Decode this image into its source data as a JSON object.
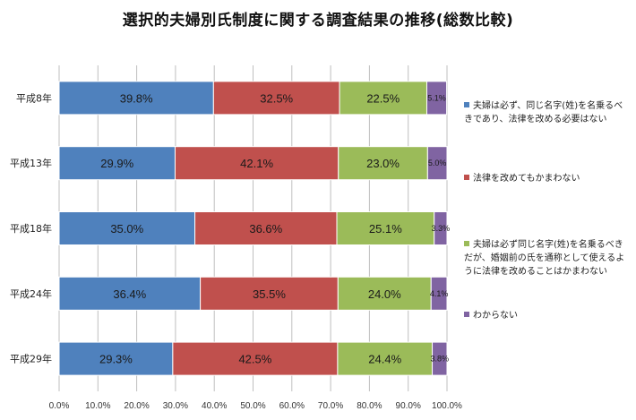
{
  "title": "選択的夫婦別氏制度に関する調査結果の推移(総数比較)",
  "chart_data": {
    "type": "bar",
    "orientation": "horizontal",
    "stacked": "100%",
    "title": "選択的夫婦別氏制度に関する調査結果の推移(総数比較)",
    "categories": [
      "平成8年",
      "平成13年",
      "平成18年",
      "平成24年",
      "平成29年"
    ],
    "series": [
      {
        "name": "夫婦は必ず、同じ名字(姓)を名乗るべきであり、法律を改める必要はない",
        "color": "#4f81bd",
        "values": [
          39.8,
          29.9,
          35.0,
          36.4,
          29.3
        ]
      },
      {
        "name": "法律を改めてもかまわない",
        "color": "#c0504d",
        "values": [
          32.5,
          42.1,
          36.6,
          35.5,
          42.5
        ]
      },
      {
        "name": "夫婦は必ず同じ名字(姓)を名乗るべきだが、婚姻前の氏を通称として使えるように法律を改めることはかまわない",
        "color": "#9bbb59",
        "values": [
          22.5,
          23.0,
          25.1,
          24.0,
          24.4
        ]
      },
      {
        "name": "わからない",
        "color": "#8064a2",
        "values": [
          5.1,
          5.0,
          3.3,
          4.1,
          3.8
        ]
      }
    ],
    "xlim": [
      0,
      100
    ],
    "xticks": [
      "0.0%",
      "10.0%",
      "20.0%",
      "30.0%",
      "40.0%",
      "50.0%",
      "60.0%",
      "70.0%",
      "80.0%",
      "90.0%",
      "100.0%"
    ],
    "grid": "vertical",
    "legend": "right"
  }
}
